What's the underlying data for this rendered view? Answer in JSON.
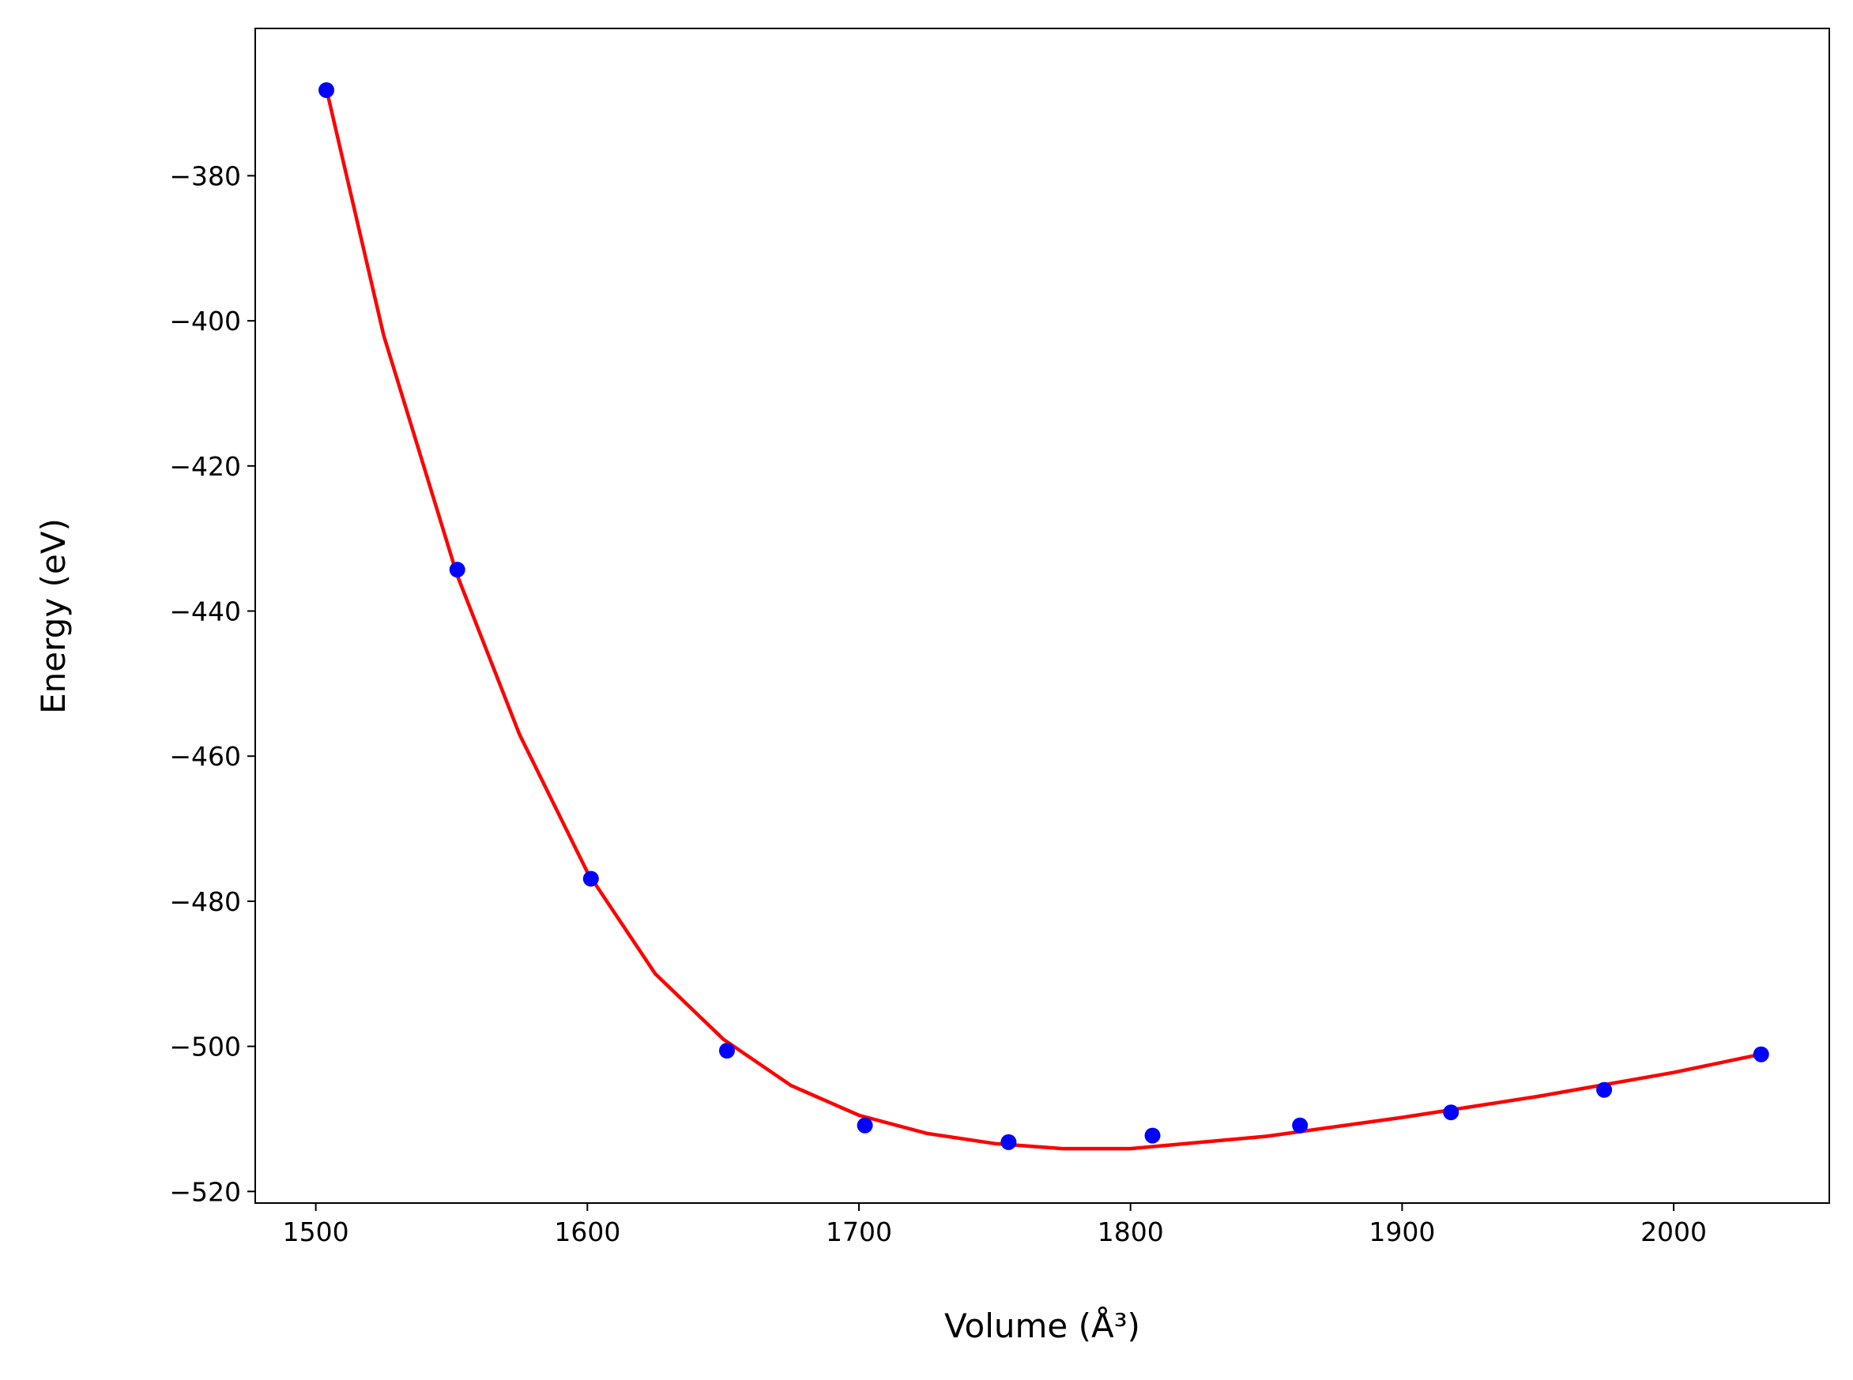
{
  "chart_data": {
    "type": "scatter",
    "xlabel": "Volume (Å³)",
    "ylabel": "Energy (eV)",
    "xlim": [
      1477.7,
      2057.3
    ],
    "ylim": [
      -521.6,
      -359.7
    ],
    "xticks": [
      1500,
      1600,
      1700,
      1800,
      1900,
      2000
    ],
    "yticks": [
      {
        "value": -520,
        "label": "−520"
      },
      {
        "value": -500,
        "label": "−500"
      },
      {
        "value": -480,
        "label": "−480"
      },
      {
        "value": -460,
        "label": "−460"
      },
      {
        "value": -440,
        "label": "−440"
      },
      {
        "value": -420,
        "label": "−420"
      },
      {
        "value": -400,
        "label": "−400"
      },
      {
        "value": -380,
        "label": "−380"
      }
    ],
    "grid": false,
    "points": {
      "color": "#0000ff",
      "x": [
        1503.9,
        1552.1,
        1601.3,
        1651.4,
        1702.2,
        1755.1,
        1808.1,
        1862.4,
        1918.0,
        1974.4,
        2032.2
      ],
      "y": [
        -368.2,
        -434.3,
        -476.9,
        -500.6,
        -510.9,
        -513.2,
        -512.3,
        -510.9,
        -509.1,
        -506.0,
        -501.1
      ]
    },
    "fit": {
      "color": "#ff0000",
      "x": [
        1504,
        1525,
        1552,
        1575,
        1600,
        1625,
        1650,
        1675,
        1700,
        1725,
        1750,
        1775,
        1800,
        1850,
        1900,
        1950,
        2000,
        2032
      ],
      "y": [
        -368.2,
        -402,
        -435,
        -457,
        -476,
        -490,
        -499,
        -505.4,
        -509.5,
        -512,
        -513.4,
        -514.1,
        -514.1,
        -512.4,
        -509.8,
        -506.9,
        -503.6,
        -501.1
      ]
    }
  }
}
